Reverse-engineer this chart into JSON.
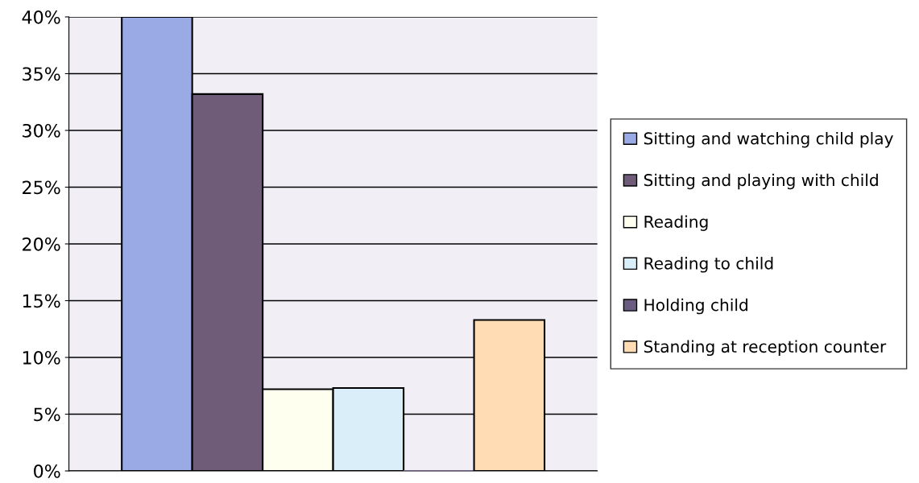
{
  "chart_data": {
    "type": "bar",
    "categories": [
      null
    ],
    "series": [
      {
        "name": "Sitting and watching child play",
        "color": "#9aaae4",
        "values": [
          40
        ]
      },
      {
        "name": "Sitting and playing with child",
        "color": "#6e5c78",
        "values": [
          33.2
        ]
      },
      {
        "name": "Reading",
        "color": "#fffff0",
        "values": [
          7.2
        ]
      },
      {
        "name": "Reading to child",
        "color": "#daeefa",
        "values": [
          7.3
        ]
      },
      {
        "name": "Holding child",
        "color": "#6a5c80",
        "values": [
          0
        ]
      },
      {
        "name": "Standing at reception counter",
        "color": "#ffdcb4",
        "values": [
          13.3
        ]
      }
    ],
    "ylim": [
      0,
      40
    ],
    "yticks": [
      {
        "value": 0,
        "label": "0%"
      },
      {
        "value": 5,
        "label": "5%"
      },
      {
        "value": 10,
        "label": "10%"
      },
      {
        "value": 15,
        "label": "15%"
      },
      {
        "value": 20,
        "label": "20%"
      },
      {
        "value": 25,
        "label": "25%"
      },
      {
        "value": 30,
        "label": "30%"
      },
      {
        "value": 35,
        "label": "35%"
      },
      {
        "value": 40,
        "label": "40%"
      }
    ],
    "grid": "y",
    "legend": "right"
  }
}
